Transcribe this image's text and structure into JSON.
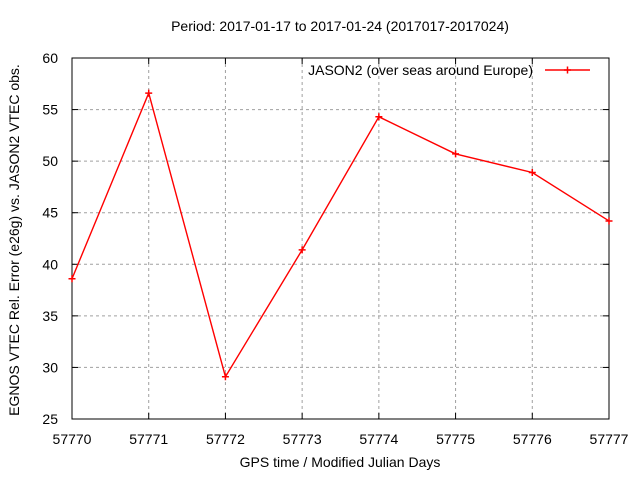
{
  "legend": {
    "label": "JASON2 (over seas around Europe)"
  },
  "colors": {
    "series": "#ff0000",
    "grid": "#a0a0a0",
    "axis": "#000000",
    "text": "#000000",
    "background": "#ffffff"
  },
  "chart_data": {
    "type": "line",
    "title": "Period: 2017-01-17 to 2017-01-24 (2017017-2017024)",
    "xlabel": "GPS time / Modified Julian Days",
    "ylabel": "EGNOS VTEC Rel. Error (e26g) vs. JASON2 VTEC obs.",
    "xlim": [
      57770,
      57777
    ],
    "ylim": [
      25,
      60
    ],
    "xticks": [
      57770,
      57771,
      57772,
      57773,
      57774,
      57775,
      57776,
      57777
    ],
    "yticks": [
      25,
      30,
      35,
      40,
      45,
      50,
      55,
      60
    ],
    "grid": true,
    "legend_position": "top-right-inside",
    "series": [
      {
        "name": "JASON2 (over seas around Europe)",
        "color": "#ff0000",
        "marker": "plus",
        "x": [
          57770,
          57771,
          57772,
          57773,
          57774,
          57775,
          57776,
          57777
        ],
        "values": [
          38.6,
          56.6,
          29.1,
          41.4,
          54.3,
          50.7,
          48.9,
          44.2
        ]
      }
    ]
  }
}
